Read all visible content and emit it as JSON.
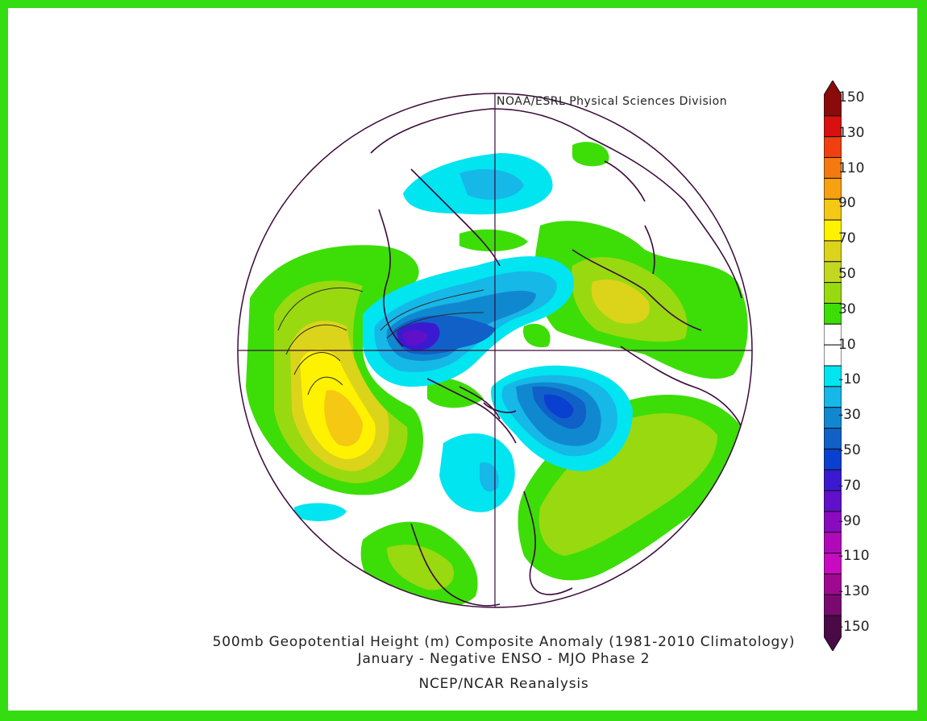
{
  "credit": "NOAA/ESRL Physical Sciences Division",
  "title": {
    "line1": "500mb Geopotential Height (m) Composite Anomaly (1981-2010 Climatology)",
    "line2": "January - Negative ENSO - MJO Phase 2",
    "line3": "NCEP/NCAR Reanalysis"
  },
  "colorbar": {
    "labels": [
      "150",
      "130",
      "110",
      "90",
      "70",
      "50",
      "30",
      "10",
      "-10",
      "-30",
      "-50",
      "-70",
      "-90",
      "-110",
      "-130",
      "-150"
    ],
    "colors": [
      "#8b0a0a",
      "#d81010",
      "#f04010",
      "#f47a10",
      "#f7a010",
      "#f5c814",
      "#fff200",
      "#dbd41a",
      "#c2d820",
      "#99d90f",
      "#3ddd08",
      "#ffffff",
      "#ffffff",
      "#00e5f0",
      "#16b8e8",
      "#1088d0",
      "#1060c8",
      "#0a40d0",
      "#3a1ad0",
      "#6010c8",
      "#8a0ac0",
      "#b00ab8",
      "#c80ac0",
      "#a00890",
      "#7a0a70",
      "#4a0a46"
    ]
  },
  "colors": {
    "border": "#33dd11",
    "outline": "#3a0a3a"
  }
}
